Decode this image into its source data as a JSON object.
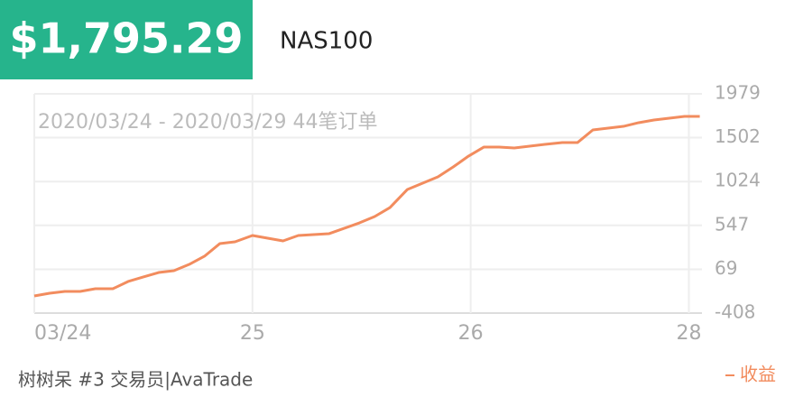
{
  "header": {
    "price": "$1,795.29",
    "symbol": "NAS100"
  },
  "chart_data": {
    "type": "line",
    "subtitle": "2020/03/24 - 2020/03/29 44笔订单",
    "x": [
      0,
      0.07,
      0.14,
      0.21,
      0.28,
      0.36,
      0.43,
      0.5,
      0.57,
      0.64,
      0.71,
      0.78,
      0.85,
      0.92,
      1.0,
      1.07,
      1.14,
      1.21,
      1.28,
      1.35,
      1.42,
      1.49,
      1.56,
      1.63,
      1.71,
      1.78,
      1.85,
      1.92,
      1.99,
      2.06,
      2.13,
      2.2,
      2.27,
      2.34,
      2.42,
      2.49,
      2.56,
      2.63,
      2.7,
      2.77,
      2.84,
      2.91,
      2.98,
      3.05
    ],
    "series": [
      {
        "name": "收益",
        "color": "#f28c5e",
        "values": [
          -221,
          -192,
          -172,
          -172,
          -143,
          -143,
          -64,
          -15,
          34,
          54,
          122,
          211,
          348,
          368,
          437,
          407,
          378,
          437,
          447,
          456,
          515,
          574,
          643,
          741,
          938,
          1007,
          1075,
          1183,
          1301,
          1399,
          1399,
          1390,
          1409,
          1429,
          1449,
          1449,
          1586,
          1606,
          1625,
          1665,
          1694,
          1714,
          1733,
          1733
        ]
      }
    ],
    "xlim": [
      0,
      3.06
    ],
    "xticks": [
      {
        "value": 0,
        "label": "03/24"
      },
      {
        "value": 1,
        "label": "25"
      },
      {
        "value": 2,
        "label": "26"
      },
      {
        "value": 3,
        "label": "28"
      }
    ],
    "ylim": [
      -408,
      1979
    ],
    "yticks": [
      -408,
      69,
      547,
      1024,
      1502,
      1979
    ],
    "grid": true,
    "legend": "bottom-right"
  },
  "footer": {
    "trader": "树树呆 #3 交易员|AvaTrade"
  }
}
